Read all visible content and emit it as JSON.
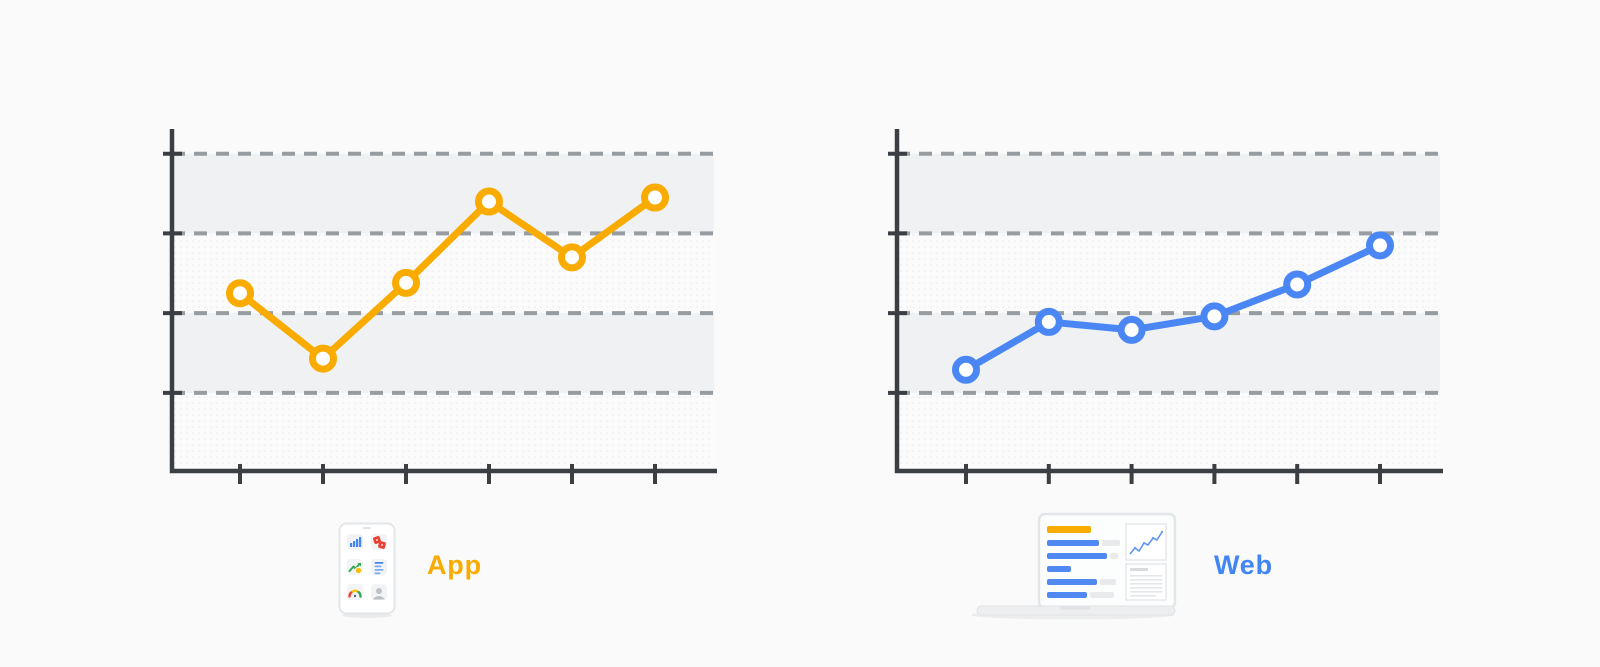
{
  "page": {
    "background_color": "#FAFAFA",
    "description": "Two dashed-grid trend line charts, App (yellow) and Web (blue)"
  },
  "charts": [
    {
      "label": "App",
      "label_color": "#F9AB00",
      "line_color": "#F9AB00",
      "icon": "smartphone-icon",
      "icon_tiles": [
        "bar-chart",
        "dice",
        "trend-arrow-coin",
        "list-lines",
        "gauge",
        "person"
      ]
    },
    {
      "label": "Web",
      "label_color": "#4285F4",
      "line_color": "#4A87F5",
      "icon": "laptop-icon",
      "icon_screen_parts": [
        "yellow-header-bar",
        "blue-progress-bars",
        "mini-line-chart",
        "text-lines"
      ]
    }
  ],
  "chart_data": [
    {
      "type": "line",
      "name": "app",
      "title": "",
      "xlabel": "",
      "ylabel": "",
      "color": "#F9AB00",
      "marker": "open-circle",
      "grid": "horizontal-dashed",
      "bands": "alternating-gray",
      "legend": "App (caption below chart with smartphone icon)",
      "x": [
        1,
        2,
        3,
        4,
        5,
        6
      ],
      "x_tick_labels": [
        "",
        "",
        "",
        "",
        "",
        ""
      ],
      "y_gridlines": [
        1,
        2,
        3,
        4
      ],
      "y_tick_labels": [
        "",
        "",
        "",
        ""
      ],
      "ylim": [
        0.02,
        4.31
      ],
      "series": [
        {
          "name": "App",
          "values": [
            2.25,
            1.43,
            2.38,
            3.4,
            2.7,
            3.45
          ]
        }
      ]
    },
    {
      "type": "line",
      "name": "web",
      "title": "",
      "xlabel": "",
      "ylabel": "",
      "color": "#4A87F5",
      "marker": "open-circle",
      "grid": "horizontal-dashed",
      "bands": "alternating-gray",
      "legend": "Web (caption below chart with laptop icon)",
      "x": [
        1,
        2,
        3,
        4,
        5,
        6
      ],
      "x_tick_labels": [
        "",
        "",
        "",
        "",
        "",
        ""
      ],
      "y_gridlines": [
        1,
        2,
        3,
        4
      ],
      "y_tick_labels": [
        "",
        "",
        "",
        ""
      ],
      "ylim": [
        0.02,
        4.31
      ],
      "series": [
        {
          "name": "Web",
          "values": [
            1.29,
            1.89,
            1.79,
            1.96,
            2.36,
            2.85
          ]
        }
      ]
    }
  ],
  "style": {
    "axis_color": "#3B3E42",
    "gridline_color": "#979CA1",
    "band_gray": "#EFF1F3",
    "band_light": "#FBFBFC"
  }
}
